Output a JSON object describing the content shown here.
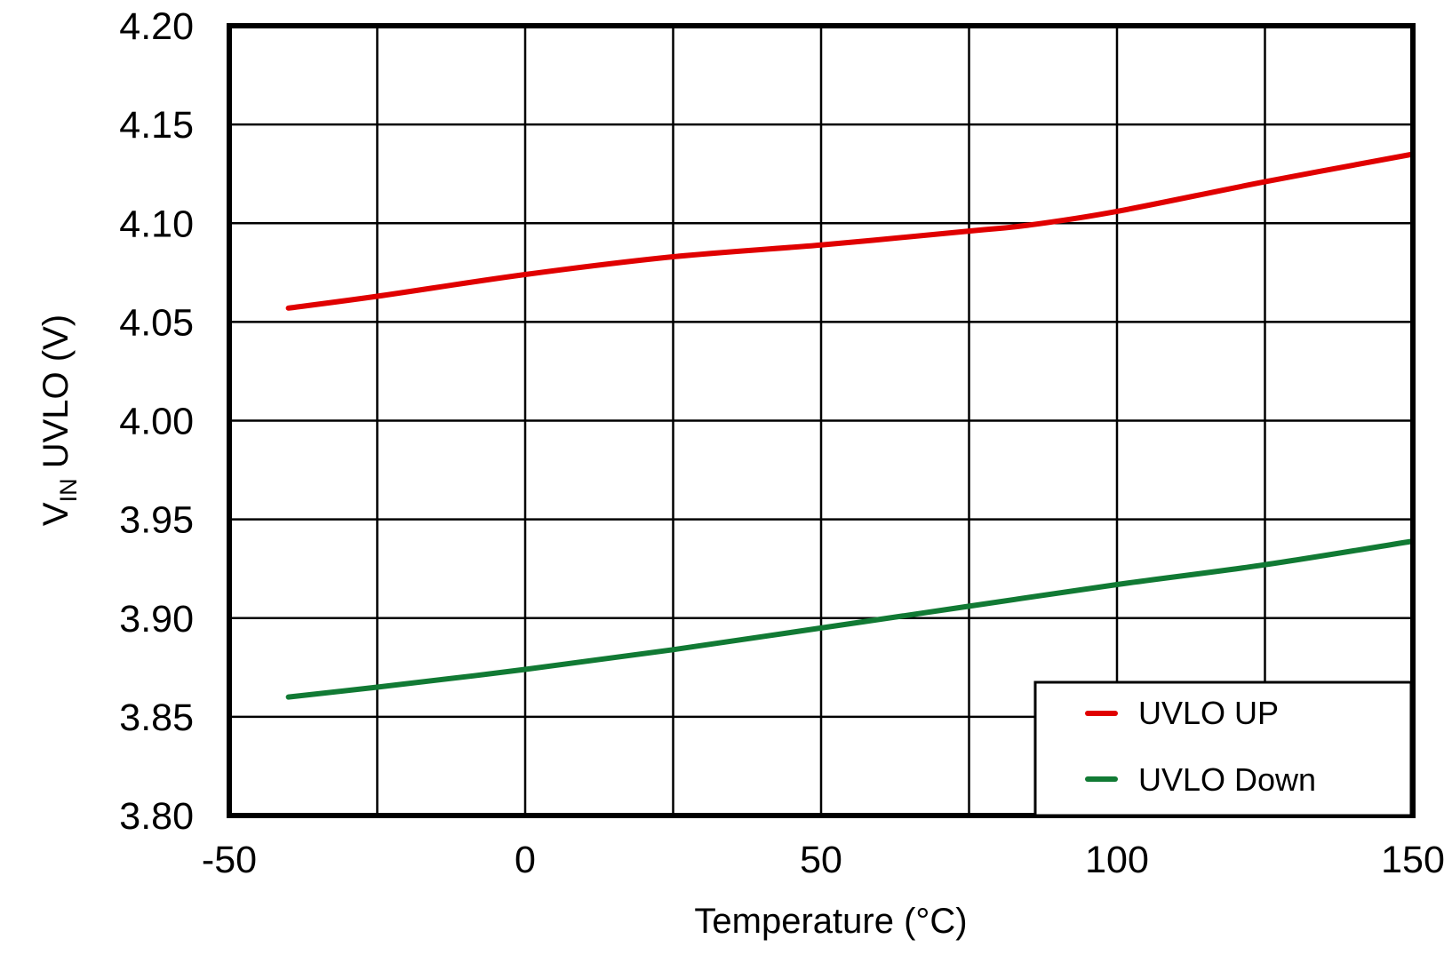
{
  "chart_data": {
    "type": "line",
    "title": "",
    "xlabel": "Temperature (°C)",
    "ylabel_main": "V",
    "ylabel_sub": "IN",
    "ylabel_rest": " UVLO (V)",
    "xlim": [
      -50,
      150
    ],
    "ylim": [
      3.8,
      4.2
    ],
    "xticks": [
      -50,
      0,
      50,
      100,
      150
    ],
    "xtick_labels": [
      "-50",
      "0",
      "50",
      "100",
      "150"
    ],
    "yticks": [
      3.8,
      3.85,
      3.9,
      3.95,
      4.0,
      4.05,
      4.1,
      4.15,
      4.2
    ],
    "ytick_labels": [
      "3.80",
      "3.85",
      "3.90",
      "3.95",
      "4.00",
      "4.05",
      "4.10",
      "4.15",
      "4.20"
    ],
    "x_grid": [
      -50,
      -25,
      0,
      25,
      50,
      75,
      100,
      125,
      150
    ],
    "grid": true,
    "legend_position": "bottom-right",
    "series": [
      {
        "name": "UVLO UP",
        "color": "#e00000",
        "x": [
          -40,
          -25,
          0,
          25,
          50,
          75,
          85,
          100,
          125,
          150
        ],
        "y": [
          4.057,
          4.063,
          4.074,
          4.083,
          4.089,
          4.096,
          4.099,
          4.106,
          4.121,
          4.135
        ]
      },
      {
        "name": "UVLO Down",
        "color": "#117a34",
        "x": [
          -40,
          -25,
          0,
          25,
          50,
          75,
          100,
          125,
          150
        ],
        "y": [
          3.86,
          3.865,
          3.874,
          3.884,
          3.895,
          3.906,
          3.917,
          3.927,
          3.939
        ]
      }
    ]
  }
}
